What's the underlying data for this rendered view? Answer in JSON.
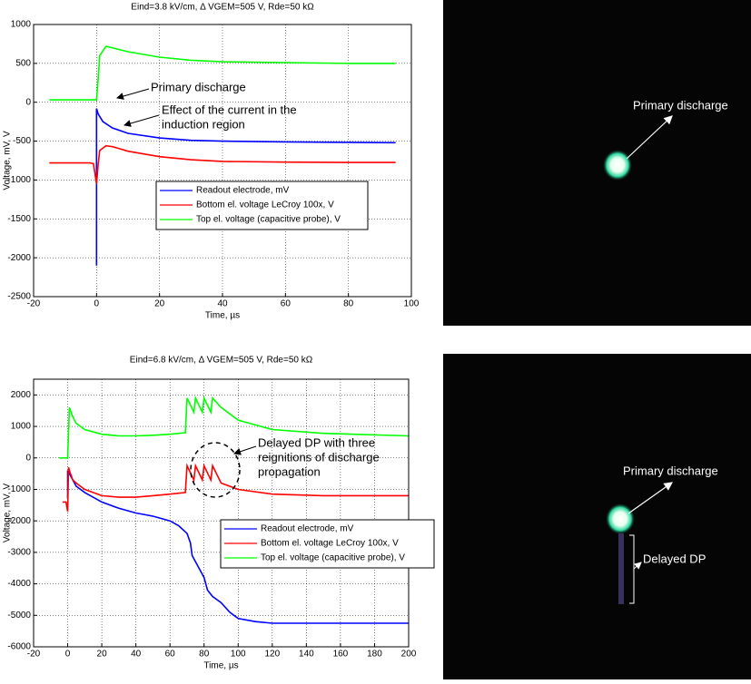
{
  "chart_data": [
    {
      "type": "line",
      "title": "Eind=3.8 kV/cm,  Δ VGEM=505 V, Rde=50 kΩ",
      "xlabel": "Time, µs",
      "ylabel": "Voltage, mV, V",
      "xlim": [
        -20,
        100
      ],
      "ylim": [
        -2500,
        1000
      ],
      "xticks": [
        -20,
        0,
        20,
        40,
        60,
        80,
        100
      ],
      "yticks": [
        -2500,
        -2000,
        -1500,
        -1000,
        -500,
        0,
        500,
        1000
      ],
      "grid": true,
      "series": [
        {
          "name": "Readout electrode, mV",
          "color": "#0000ff",
          "x": [
            0,
            0,
            0.5,
            2,
            5,
            10,
            20,
            30,
            40,
            60,
            80,
            95
          ],
          "values": [
            -2100,
            -80,
            -150,
            -250,
            -330,
            -400,
            -460,
            -490,
            -500,
            -510,
            -515,
            -520
          ]
        },
        {
          "name": "Bottom el. voltage LeCroy 100x, V",
          "color": "#ff0000",
          "x": [
            -15,
            -2,
            -1,
            0,
            0.5,
            1,
            3,
            5,
            10,
            20,
            30,
            40,
            60,
            80,
            95
          ],
          "values": [
            -780,
            -780,
            -790,
            -1050,
            -800,
            -620,
            -560,
            -570,
            -630,
            -700,
            -740,
            -760,
            -770,
            -775,
            -775
          ]
        },
        {
          "name": "Top el. voltage (capacitive probe), V",
          "color": "#00ff00",
          "x": [
            -15,
            -1,
            0,
            0.5,
            1,
            3,
            5,
            10,
            20,
            30,
            40,
            60,
            80,
            95
          ],
          "values": [
            30,
            30,
            30,
            300,
            600,
            720,
            700,
            650,
            580,
            540,
            520,
            510,
            500,
            500
          ]
        }
      ],
      "annotations": [
        {
          "text": [
            "Primary discharge"
          ]
        },
        {
          "text": [
            "Effect of the current in the",
            "induction region"
          ]
        }
      ]
    },
    {
      "type": "line",
      "title": "Eind=6.8 kV/cm,  Δ VGEM=505 V, Rde=50 kΩ",
      "xlabel": "Time, µs",
      "ylabel": "Voltage, mV, V",
      "xlim": [
        -20,
        200
      ],
      "ylim": [
        -6000,
        2500
      ],
      "xticks": [
        -20,
        0,
        20,
        40,
        60,
        80,
        100,
        120,
        140,
        160,
        180,
        200
      ],
      "yticks": [
        -6000,
        -5000,
        -4000,
        -3000,
        -2000,
        -1000,
        0,
        1000,
        2000
      ],
      "grid": true,
      "series": [
        {
          "name": "Readout electrode, mV",
          "color": "#0000ff",
          "x": [
            0,
            0,
            1,
            5,
            10,
            20,
            30,
            40,
            50,
            60,
            65,
            70,
            72,
            73,
            75,
            78,
            80,
            82,
            85,
            90,
            95,
            100,
            110,
            120,
            150,
            200
          ],
          "values": [
            -1300,
            -400,
            -500,
            -900,
            -1100,
            -1400,
            -1600,
            -1750,
            -1850,
            -2000,
            -2150,
            -2400,
            -2700,
            -3100,
            -3300,
            -3600,
            -3800,
            -4200,
            -4400,
            -4600,
            -4900,
            -5100,
            -5200,
            -5250,
            -5250,
            -5250
          ]
        },
        {
          "name": "Bottom el. voltage LeCroy 100x, V",
          "color": "#ff0000",
          "x": [
            -3,
            -1,
            0,
            0.5,
            1,
            3,
            5,
            10,
            20,
            30,
            40,
            50,
            60,
            69,
            70,
            74,
            75,
            79,
            80,
            84,
            85,
            90,
            100,
            120,
            150,
            200
          ],
          "values": [
            -1400,
            -1400,
            -1700,
            -300,
            -400,
            -700,
            -800,
            -1000,
            -1200,
            -1250,
            -1250,
            -1200,
            -1150,
            -1100,
            -250,
            -700,
            -250,
            -700,
            -250,
            -700,
            -250,
            -800,
            -1000,
            -1150,
            -1200,
            -1200
          ]
        },
        {
          "name": "Top el. voltage (capacitive probe), V",
          "color": "#00ff00",
          "x": [
            -5,
            -1,
            0,
            1,
            3,
            5,
            10,
            20,
            30,
            40,
            50,
            60,
            69,
            70,
            74,
            75,
            79,
            80,
            84,
            85,
            90,
            100,
            120,
            150,
            200
          ],
          "values": [
            0,
            0,
            0,
            1600,
            1300,
            1100,
            900,
            750,
            700,
            700,
            720,
            750,
            800,
            1900,
            1450,
            1900,
            1450,
            1900,
            1450,
            1900,
            1600,
            1200,
            900,
            780,
            700
          ]
        }
      ],
      "annotations": [
        {
          "text": [
            "Delayed DP with three",
            "reignitions of discharge",
            "propagation"
          ]
        }
      ]
    }
  ],
  "photos": [
    {
      "labels": [
        "Primary discharge"
      ]
    },
    {
      "labels": [
        "Primary discharge",
        "Delayed DP"
      ]
    }
  ]
}
